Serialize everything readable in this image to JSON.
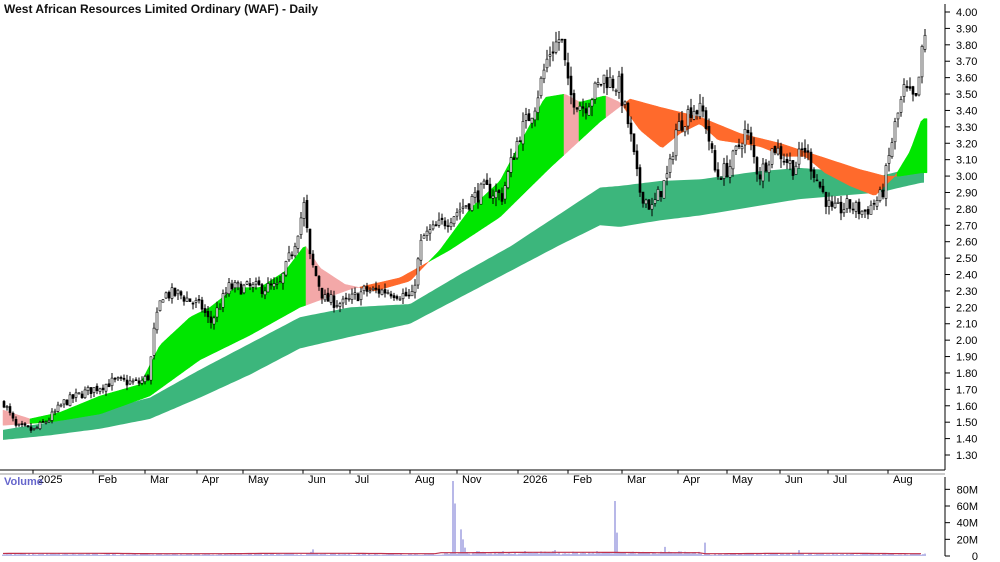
{
  "chart_data": [
    {
      "type": "candlestick",
      "title": "West African Resources Limited Ordinary (WAF) - Daily",
      "ylim": [
        1.3,
        4.0
      ],
      "y_ticks": [
        "1.30",
        "1.40",
        "1.50",
        "1.60",
        "1.70",
        "1.80",
        "1.90",
        "2.00",
        "2.10",
        "2.20",
        "2.30",
        "2.40",
        "2.50",
        "2.60",
        "2.70",
        "2.80",
        "2.90",
        "3.00",
        "3.10",
        "3.20",
        "3.30",
        "3.40",
        "3.50",
        "3.60",
        "3.70",
        "3.80",
        "3.90",
        "4.00"
      ],
      "x_labels": [
        "2025",
        "Feb",
        "Mar",
        "Apr",
        "May",
        "Jun",
        "Jul",
        "Aug",
        "Nov",
        "2026",
        "Feb",
        "Mar",
        "Apr",
        "May",
        "Jun",
        "Jul",
        "Aug"
      ],
      "close_anchors": [
        [
          0,
          1.62
        ],
        [
          12,
          1.47
        ],
        [
          30,
          1.45
        ],
        [
          45,
          1.52
        ],
        [
          60,
          1.62
        ],
        [
          80,
          1.68
        ],
        [
          110,
          1.75
        ],
        [
          135,
          1.74
        ],
        [
          145,
          1.78
        ],
        [
          150,
          2.05
        ],
        [
          158,
          2.28
        ],
        [
          175,
          2.28
        ],
        [
          198,
          2.2
        ],
        [
          206,
          2.1
        ],
        [
          225,
          2.32
        ],
        [
          248,
          2.32
        ],
        [
          262,
          2.32
        ],
        [
          275,
          2.32
        ],
        [
          290,
          2.58
        ],
        [
          300,
          2.82
        ],
        [
          306,
          2.5
        ],
        [
          320,
          2.25
        ],
        [
          340,
          2.22
        ],
        [
          360,
          2.3
        ],
        [
          385,
          2.3
        ],
        [
          408,
          2.26
        ],
        [
          418,
          2.62
        ],
        [
          440,
          2.72
        ],
        [
          460,
          2.82
        ],
        [
          480,
          2.92
        ],
        [
          498,
          2.88
        ],
        [
          515,
          3.25
        ],
        [
          530,
          3.42
        ],
        [
          545,
          3.75
        ],
        [
          557,
          3.85
        ],
        [
          565,
          3.5
        ],
        [
          580,
          3.42
        ],
        [
          600,
          3.6
        ],
        [
          615,
          3.55
        ],
        [
          625,
          3.3
        ],
        [
          635,
          2.92
        ],
        [
          648,
          2.8
        ],
        [
          665,
          3.02
        ],
        [
          672,
          3.28
        ],
        [
          688,
          3.42
        ],
        [
          700,
          3.38
        ],
        [
          712,
          3.0
        ],
        [
          725,
          3.05
        ],
        [
          742,
          3.28
        ],
        [
          755,
          3.0
        ],
        [
          770,
          3.18
        ],
        [
          790,
          3.05
        ],
        [
          800,
          3.18
        ],
        [
          815,
          2.95
        ],
        [
          828,
          2.78
        ],
        [
          845,
          2.82
        ],
        [
          860,
          2.78
        ],
        [
          878,
          2.88
        ],
        [
          890,
          3.28
        ],
        [
          900,
          3.52
        ],
        [
          912,
          3.45
        ],
        [
          920,
          3.84
        ]
      ],
      "ema_short_anchors": [
        [
          0,
          1.58
        ],
        [
          30,
          1.52
        ],
        [
          60,
          1.56
        ],
        [
          100,
          1.66
        ],
        [
          140,
          1.73
        ],
        [
          160,
          1.97
        ],
        [
          190,
          2.14
        ],
        [
          210,
          2.2
        ],
        [
          235,
          2.32
        ],
        [
          260,
          2.32
        ],
        [
          285,
          2.42
        ],
        [
          305,
          2.58
        ],
        [
          320,
          2.44
        ],
        [
          345,
          2.34
        ],
        [
          375,
          2.3
        ],
        [
          410,
          2.36
        ],
        [
          440,
          2.55
        ],
        [
          470,
          2.8
        ],
        [
          500,
          2.97
        ],
        [
          520,
          3.2
        ],
        [
          545,
          3.48
        ],
        [
          565,
          3.5
        ],
        [
          580,
          3.45
        ],
        [
          605,
          3.49
        ],
        [
          620,
          3.45
        ],
        [
          640,
          3.28
        ],
        [
          662,
          3.17
        ],
        [
          680,
          3.26
        ],
        [
          700,
          3.32
        ],
        [
          718,
          3.22
        ],
        [
          740,
          3.2
        ],
        [
          760,
          3.18
        ],
        [
          785,
          3.12
        ],
        [
          805,
          3.12
        ],
        [
          825,
          3.02
        ],
        [
          850,
          2.94
        ],
        [
          875,
          2.88
        ],
        [
          895,
          3.0
        ],
        [
          910,
          3.15
        ],
        [
          922,
          3.35
        ]
      ],
      "ema_long_anchors": [
        [
          0,
          1.48
        ],
        [
          50,
          1.5
        ],
        [
          100,
          1.55
        ],
        [
          150,
          1.66
        ],
        [
          200,
          1.88
        ],
        [
          250,
          2.03
        ],
        [
          300,
          2.2
        ],
        [
          350,
          2.31
        ],
        [
          400,
          2.38
        ],
        [
          450,
          2.55
        ],
        [
          500,
          2.75
        ],
        [
          550,
          3.05
        ],
        [
          600,
          3.33
        ],
        [
          630,
          3.47
        ],
        [
          660,
          3.42
        ],
        [
          700,
          3.36
        ],
        [
          740,
          3.26
        ],
        [
          780,
          3.2
        ],
        [
          820,
          3.12
        ],
        [
          860,
          3.04
        ],
        [
          885,
          3.0
        ],
        [
          900,
          3.0
        ],
        [
          922,
          3.02
        ]
      ],
      "band_top_anchors": [
        [
          0,
          1.45
        ],
        [
          50,
          1.5
        ],
        [
          100,
          1.57
        ],
        [
          150,
          1.65
        ],
        [
          200,
          1.82
        ],
        [
          250,
          1.98
        ],
        [
          300,
          2.14
        ],
        [
          350,
          2.2
        ],
        [
          410,
          2.22
        ],
        [
          460,
          2.4
        ],
        [
          510,
          2.57
        ],
        [
          560,
          2.77
        ],
        [
          600,
          2.93
        ],
        [
          620,
          2.94
        ],
        [
          660,
          2.97
        ],
        [
          700,
          2.98
        ],
        [
          760,
          3.03
        ],
        [
          800,
          3.05
        ],
        [
          840,
          3.03
        ],
        [
          880,
          3.0
        ],
        [
          900,
          3.03
        ],
        [
          922,
          3.09
        ]
      ],
      "band_bottom_anchors": [
        [
          0,
          1.39
        ],
        [
          50,
          1.42
        ],
        [
          100,
          1.46
        ],
        [
          150,
          1.52
        ],
        [
          200,
          1.65
        ],
        [
          250,
          1.79
        ],
        [
          300,
          1.95
        ],
        [
          350,
          2.02
        ],
        [
          410,
          2.1
        ],
        [
          460,
          2.26
        ],
        [
          510,
          2.42
        ],
        [
          560,
          2.58
        ],
        [
          600,
          2.7
        ],
        [
          620,
          2.69
        ],
        [
          660,
          2.73
        ],
        [
          700,
          2.76
        ],
        [
          760,
          2.82
        ],
        [
          800,
          2.86
        ],
        [
          840,
          2.88
        ],
        [
          880,
          2.9
        ],
        [
          900,
          2.93
        ],
        [
          922,
          2.96
        ]
      ],
      "colors": {
        "up_band": "#00e600",
        "down_band": "#ff6a2c",
        "fade_band": "#f3a8a8",
        "long_band": "#3cb67c",
        "candle": "#000000",
        "axis": "#000000"
      }
    },
    {
      "type": "bar",
      "title": "Volume",
      "ylim": [
        0,
        90
      ],
      "y_ticks": [
        "0",
        "20M",
        "40M",
        "60M",
        "80M"
      ],
      "volume_spikes": [
        [
          15,
          7
        ],
        [
          310,
          8
        ],
        [
          308,
          5
        ],
        [
          450,
          90
        ],
        [
          452,
          63
        ],
        [
          455,
          42
        ],
        [
          458,
          32
        ],
        [
          460,
          20
        ],
        [
          462,
          10
        ],
        [
          522,
          6
        ],
        [
          545,
          10
        ],
        [
          552,
          7
        ],
        [
          612,
          66
        ],
        [
          614,
          28
        ],
        [
          662,
          11
        ],
        [
          702,
          16
        ],
        [
          796,
          7
        ]
      ],
      "volume_avg_level": 3,
      "colors": {
        "bar": "#7070d0",
        "avg_line": "#c0304a"
      }
    }
  ]
}
